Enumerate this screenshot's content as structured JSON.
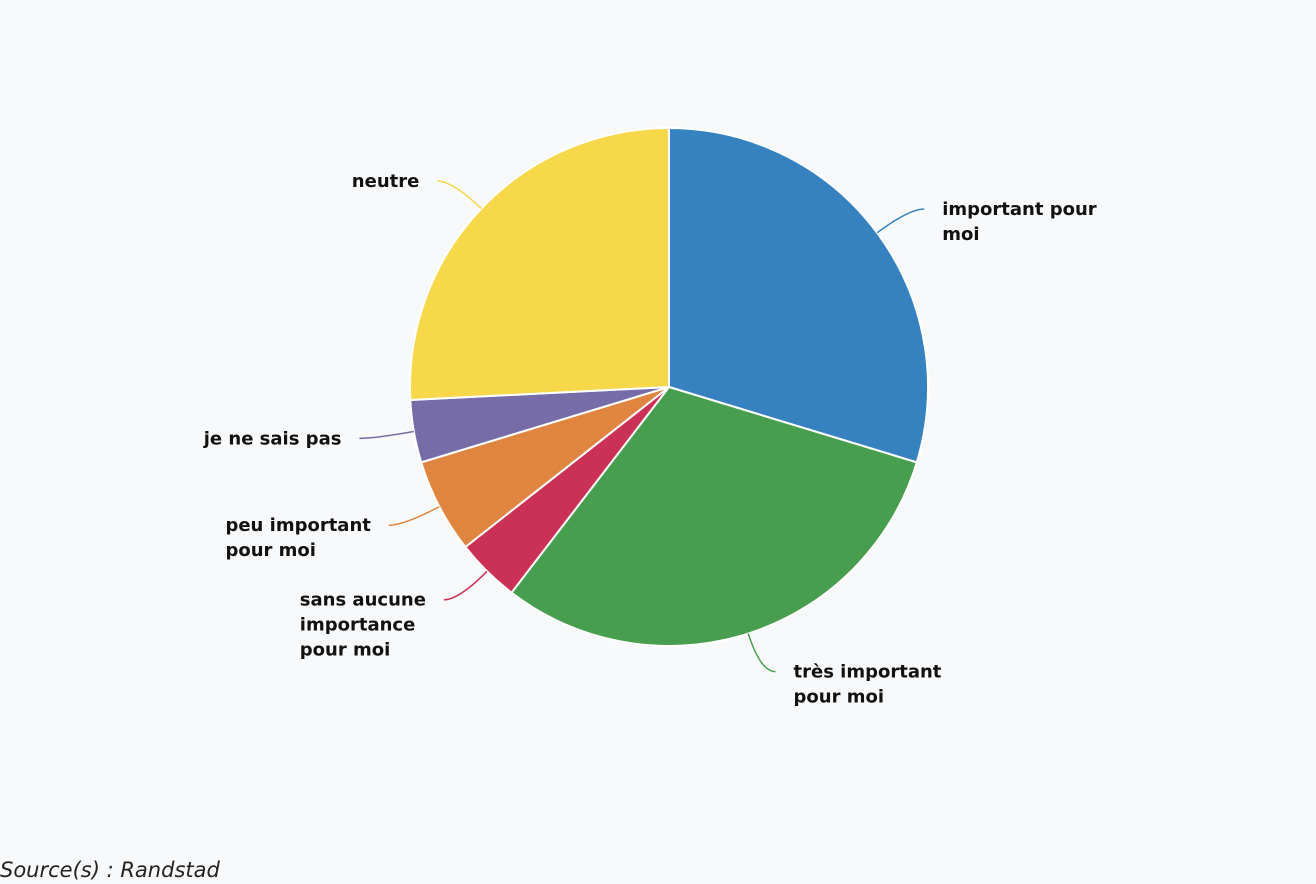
{
  "chart_data": {
    "type": "pie",
    "categories": [
      "important pour moi",
      "très important pour moi",
      "sans aucune importance pour moi",
      "peu important pour moi",
      "je ne sais pas",
      "neutre"
    ],
    "values": [
      29.7,
      30.7,
      4,
      5.9,
      3.9,
      25.8
    ],
    "colors": [
      "#3682c0",
      "#489e4f",
      "#cb3154",
      "#e08540",
      "#766ca8",
      "#f7d84b"
    ],
    "source": "Source(s) : Randstad"
  }
}
